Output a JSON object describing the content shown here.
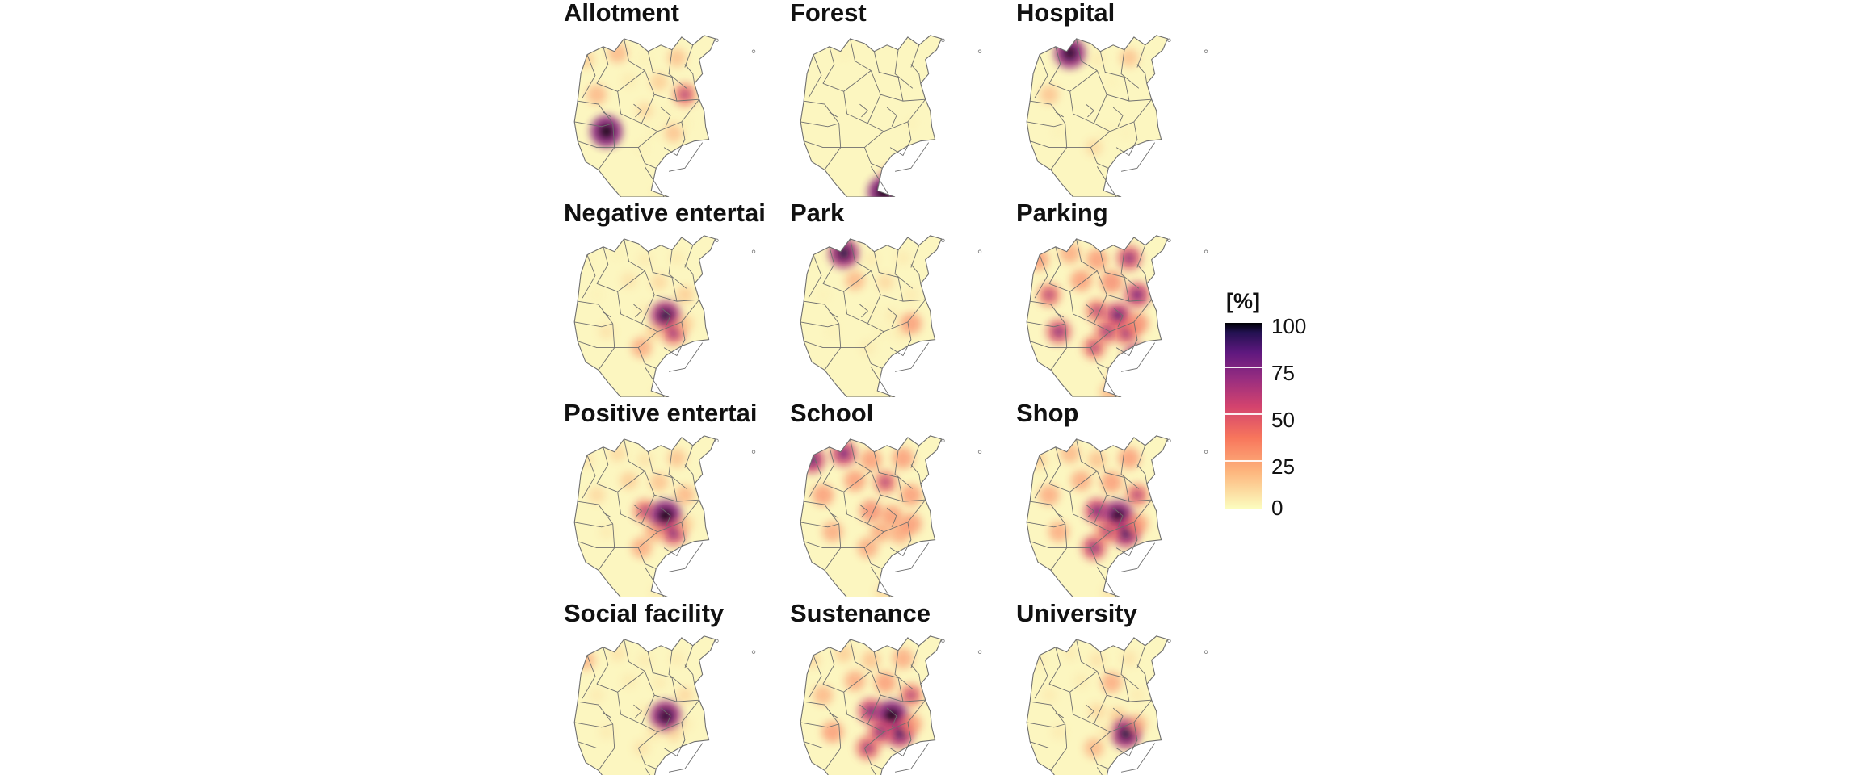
{
  "panels": [
    {
      "title": "Allotment",
      "intensity": [
        0.25,
        0.35,
        0.05,
        0.3,
        0.35,
        0.1,
        0.25,
        0.55,
        1.0,
        0.2,
        0.05,
        0.3,
        0.05,
        0.05,
        0.05,
        0.2,
        0.1,
        0.05
      ]
    },
    {
      "title": "Forest",
      "intensity": [
        0.0,
        0.05,
        0.0,
        0.0,
        0.0,
        0.0,
        0.0,
        0.0,
        0.0,
        0.0,
        0.0,
        0.0,
        0.0,
        0.05,
        0.0,
        0.2,
        0.6,
        1.0
      ]
    },
    {
      "title": "Hospital",
      "intensity": [
        0.0,
        0.95,
        0.1,
        0.3,
        0.3,
        0.0,
        0.05,
        0.0,
        0.05,
        0.0,
        0.0,
        0.05,
        0.2,
        0.0,
        0.05,
        0.0,
        0.0,
        0.0
      ]
    },
    {
      "title": "Negative entertai",
      "intensity": [
        0.05,
        0.05,
        0.1,
        0.1,
        0.05,
        0.15,
        0.2,
        0.25,
        0.15,
        0.1,
        0.9,
        0.6,
        0.4,
        0.25,
        0.25,
        0.1,
        0.05,
        0.05
      ]
    },
    {
      "title": "Park",
      "intensity": [
        0.05,
        0.9,
        0.1,
        0.1,
        0.05,
        0.35,
        0.2,
        0.1,
        0.05,
        0.05,
        0.1,
        0.1,
        0.1,
        0.45,
        0.05,
        0.1,
        0.05,
        0.05
      ]
    },
    {
      "title": "Parking",
      "intensity": [
        0.45,
        0.4,
        0.45,
        0.65,
        0.55,
        0.45,
        0.5,
        0.7,
        0.65,
        0.55,
        0.75,
        0.6,
        0.55,
        0.5,
        0.6,
        0.85,
        0.45,
        0.35
      ]
    },
    {
      "title": "Positive entertai",
      "intensity": [
        0.15,
        0.2,
        0.15,
        0.3,
        0.2,
        0.25,
        0.3,
        0.35,
        0.1,
        0.55,
        1.0,
        0.65,
        0.4,
        0.25,
        0.4,
        0.2,
        0.1,
        0.1
      ]
    },
    {
      "title": "School",
      "intensity": [
        0.75,
        0.7,
        0.45,
        0.45,
        0.45,
        0.45,
        0.55,
        0.45,
        0.4,
        0.5,
        0.45,
        0.4,
        0.4,
        0.45,
        0.4,
        0.35,
        0.3,
        0.2
      ]
    },
    {
      "title": "Shop",
      "intensity": [
        0.25,
        0.35,
        0.3,
        0.45,
        0.4,
        0.4,
        0.45,
        0.55,
        0.4,
        0.7,
        0.95,
        0.8,
        0.65,
        0.45,
        0.55,
        0.35,
        0.2,
        0.15
      ]
    },
    {
      "title": "Social facility",
      "intensity": [
        0.35,
        0.15,
        0.1,
        0.1,
        0.1,
        0.1,
        0.1,
        0.2,
        0.1,
        0.1,
        0.95,
        0.2,
        0.15,
        0.1,
        0.15,
        0.1,
        0.05,
        0.05
      ]
    },
    {
      "title": "Sustenance",
      "intensity": [
        0.2,
        0.25,
        0.3,
        0.4,
        0.35,
        0.4,
        0.45,
        0.55,
        0.45,
        0.7,
        1.0,
        0.8,
        0.6,
        0.45,
        0.65,
        0.3,
        0.2,
        0.2
      ]
    },
    {
      "title": "University",
      "intensity": [
        0.1,
        0.1,
        0.15,
        0.15,
        0.1,
        0.1,
        0.4,
        0.1,
        0.1,
        0.2,
        0.25,
        0.9,
        0.35,
        0.35,
        0.15,
        0.05,
        0.05,
        0.05
      ]
    }
  ],
  "legend": {
    "title": "[%]",
    "ticks": [
      "100",
      "75",
      "50",
      "25",
      "0"
    ],
    "range": [
      0,
      100
    ]
  },
  "colors": {
    "land": "#fcf6c0",
    "border": "#6e6e6e",
    "scale": [
      "#fcfdbf",
      "#fdb57d",
      "#f8765c",
      "#d3436e",
      "#982d80",
      "#5f187f",
      "#221150",
      "#000004"
    ]
  }
}
